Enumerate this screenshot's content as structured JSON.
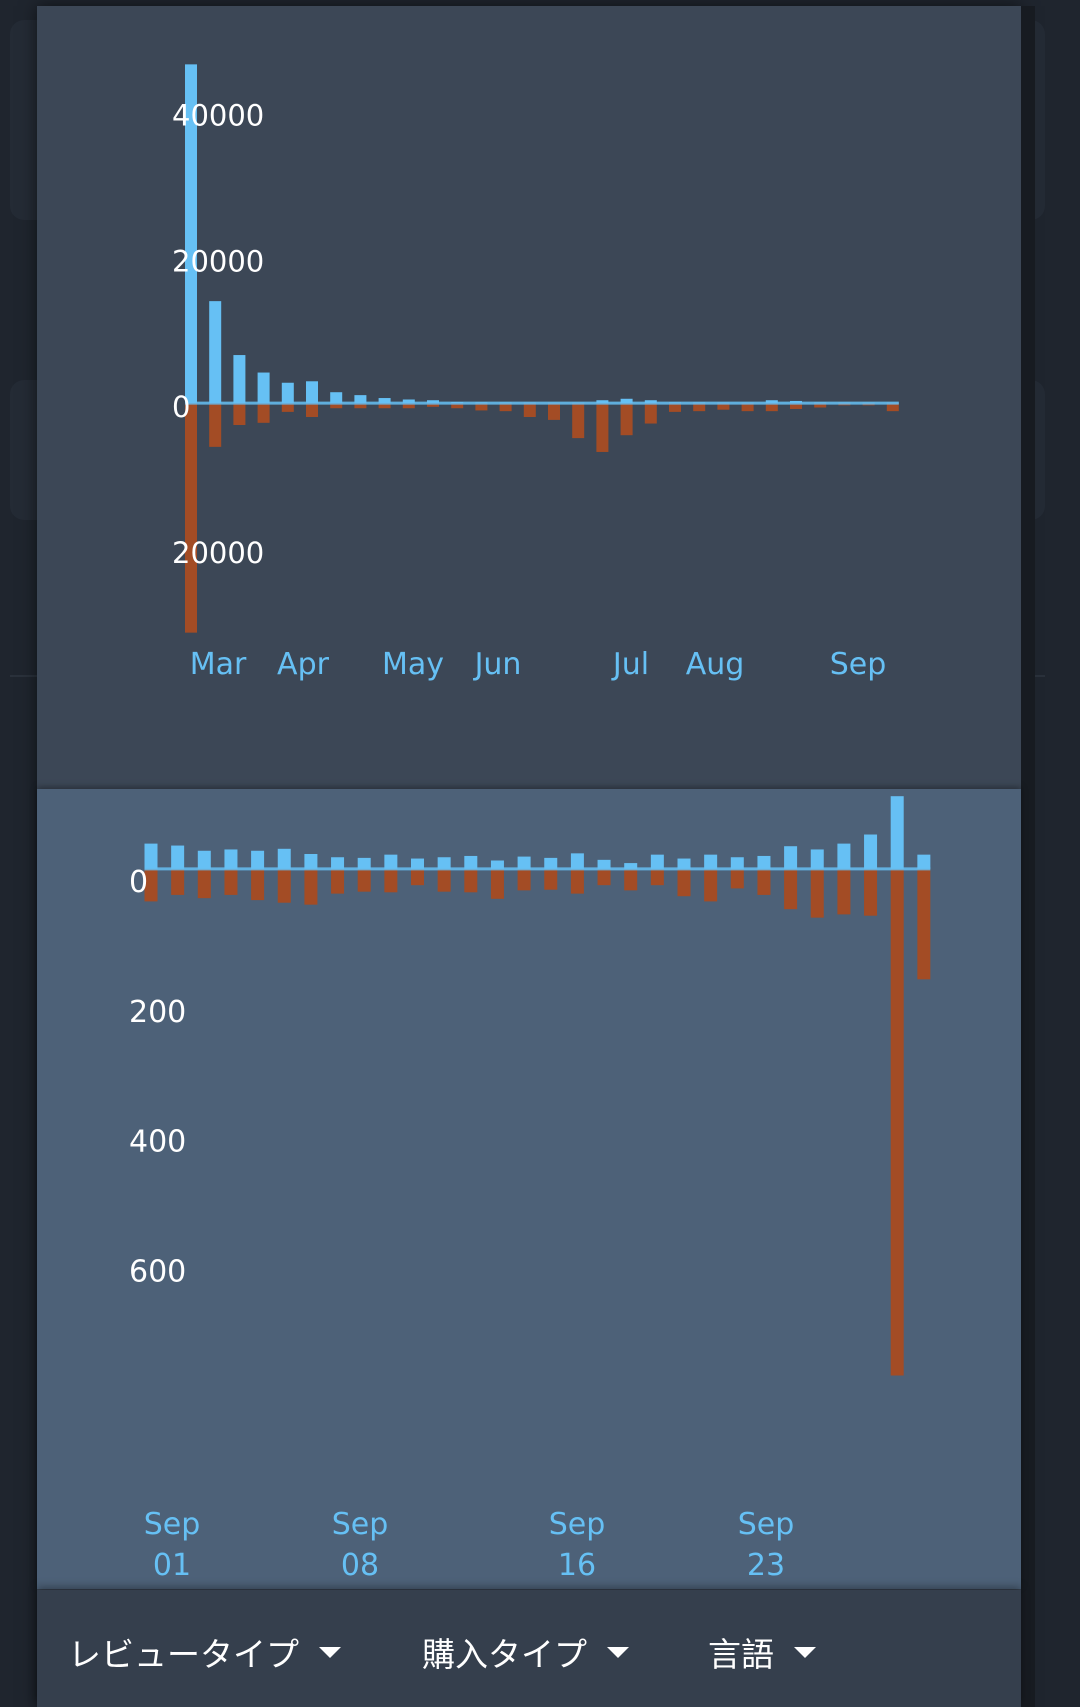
{
  "chart_data": [
    {
      "type": "bar",
      "title": "",
      "colors": {
        "positive": "#66c0f4",
        "negative": "#a34c25",
        "baseline": "#66c0f4",
        "axis_text": "#ffffff",
        "date_text": "#66c0f4"
      },
      "ylim": [
        -31000,
        46000
      ],
      "y_ticks": [
        {
          "value": 40000,
          "label": "40000"
        },
        {
          "value": 20000,
          "label": "20000"
        },
        {
          "value": 0,
          "label": "0"
        },
        {
          "value": -20000,
          "label": "20000"
        }
      ],
      "x_labels": [
        "Mar",
        "Apr",
        "May",
        "Jun",
        "Jul",
        "Aug",
        "Sep"
      ],
      "series": [
        {
          "values": [
            46500,
            14000,
            6600,
            4200,
            2800,
            3000,
            1500,
            1100,
            700,
            500,
            400,
            150,
            100,
            80,
            60,
            50,
            50,
            400,
            600,
            400,
            100,
            80,
            60,
            50,
            400,
            300,
            80,
            60,
            50,
            50
          ]
        },
        {
          "values": [
            -31500,
            -6000,
            -3000,
            -2700,
            -1200,
            -1900,
            -700,
            -700,
            -700,
            -700,
            -500,
            -700,
            -1000,
            -1100,
            -1900,
            -2300,
            -4800,
            -6700,
            -4400,
            -2800,
            -1200,
            -1100,
            -900,
            -1100,
            -1100,
            -800,
            -600,
            -300,
            -300,
            -1100
          ]
        }
      ]
    },
    {
      "type": "bar",
      "title": "",
      "colors": {
        "positive": "#66c0f4",
        "negative": "#a34c25",
        "baseline": "#66c0f4",
        "axis_text": "#ffffff",
        "date_text": "#66c0f4"
      },
      "ylim": [
        -790,
        120
      ],
      "y_ticks": [
        {
          "value": 0,
          "label": "0"
        },
        {
          "value": -200,
          "label": "200"
        },
        {
          "value": -400,
          "label": "400"
        },
        {
          "value": -600,
          "label": "600"
        }
      ],
      "x_labels": [
        {
          "month": "Sep",
          "day": "01"
        },
        {
          "month": "Sep",
          "day": "08"
        },
        {
          "month": "Sep",
          "day": "16"
        },
        {
          "month": "Sep",
          "day": "23"
        }
      ],
      "series": [
        {
          "values": [
            39,
            36,
            28,
            30,
            28,
            31,
            23,
            18,
            17,
            22,
            16,
            18,
            20,
            13,
            19,
            17,
            24,
            14,
            9,
            22,
            16,
            22,
            18,
            20,
            35,
            30,
            39,
            53,
            112,
            22
          ]
        },
        {
          "values": [
            -50,
            -40,
            -45,
            -40,
            -48,
            -52,
            -55,
            -38,
            -35,
            -36,
            -25,
            -35,
            -36,
            -46,
            -33,
            -32,
            -38,
            -25,
            -33,
            -25,
            -42,
            -50,
            -30,
            -40,
            -62,
            -75,
            -70,
            -72,
            -780,
            -170
          ]
        }
      ]
    }
  ],
  "filters": [
    {
      "label": "レビュータイプ"
    },
    {
      "label": "購入タイプ"
    },
    {
      "label": "言語"
    }
  ]
}
